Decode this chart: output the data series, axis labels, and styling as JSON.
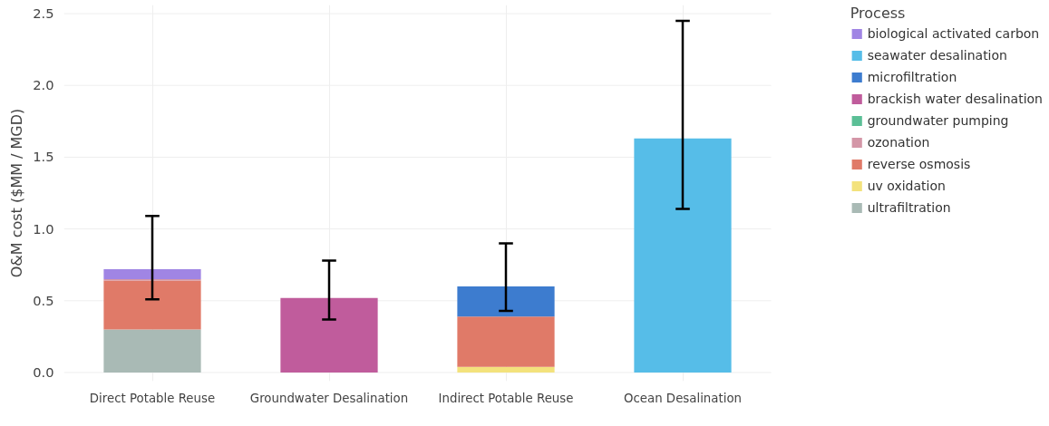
{
  "chart_data": {
    "type": "bar",
    "stacked": true,
    "ylabel": "O&M cost ($MM / MGD)",
    "legend_title": "Process",
    "legend": "right",
    "grid": true,
    "categories": [
      "Direct Potable Reuse",
      "Groundwater Desalination",
      "Indirect Potable Reuse",
      "Ocean Desalination"
    ],
    "ylim": [
      -0.06,
      2.56
    ],
    "yticks": [
      {
        "value": 0,
        "label": "0.0"
      },
      0.5,
      {
        "value": 1,
        "label": "1.0"
      },
      1.5,
      {
        "value": 2,
        "label": "2.0"
      },
      2.5
    ],
    "series": [
      {
        "name": "ultrafiltration",
        "color": "#a9bab5",
        "values": [
          0.3,
          null,
          null,
          null
        ]
      },
      {
        "name": "uv oxidation",
        "color": "#f3e27c",
        "values": [
          null,
          null,
          0.04,
          null
        ]
      },
      {
        "name": "reverse osmosis",
        "color": "#e07a68",
        "values": [
          0.34,
          null,
          0.35,
          null
        ]
      },
      {
        "name": "ozonation",
        "color": "#d496a7",
        "values": [
          0.01,
          null,
          null,
          null
        ]
      },
      {
        "name": "groundwater pumping",
        "color": "#5bbf96",
        "values": [
          null,
          0,
          null,
          null
        ]
      },
      {
        "name": "brackish water desalination",
        "color": "#c05c9c",
        "values": [
          null,
          0.52,
          null,
          null
        ],
        "errors": [
          null,
          [
            0.37,
            0.78
          ],
          null,
          null
        ]
      },
      {
        "name": "microfiltration",
        "color": "#3d7ccf",
        "values": [
          null,
          null,
          0.21,
          null
        ],
        "errors": [
          null,
          null,
          [
            0.43,
            0.9
          ],
          null
        ]
      },
      {
        "name": "seawater desalination",
        "color": "#56bde8",
        "values": [
          null,
          null,
          null,
          1.63
        ],
        "errors": [
          null,
          null,
          null,
          [
            1.14,
            2.45
          ]
        ]
      },
      {
        "name": "biological activated carbon",
        "color": "#a085e4",
        "values": [
          0.07,
          null,
          null,
          null
        ],
        "errors": [
          [
            0.51,
            1.09
          ],
          null,
          null,
          null
        ]
      }
    ]
  }
}
